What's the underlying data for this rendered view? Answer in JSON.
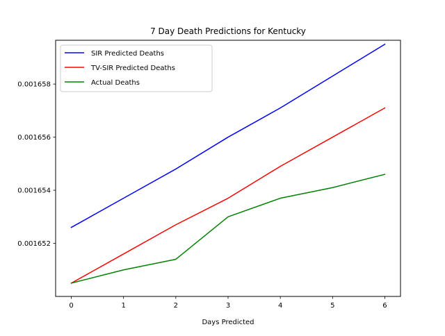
{
  "chart_data": {
    "type": "line",
    "title": "7 Day Death Predictions for Kentucky",
    "xlabel": "Days Predicted",
    "ylabel": "",
    "x": [
      0,
      1,
      2,
      3,
      4,
      5,
      6
    ],
    "xlim": [
      -0.3,
      6.3
    ],
    "ylim": [
      0.00165,
      0.00165965
    ],
    "x_ticks": [
      "0",
      "1",
      "2",
      "3",
      "4",
      "5",
      "6"
    ],
    "y_ticks": [
      {
        "value": 0.001652,
        "label": "0.001652"
      },
      {
        "value": 0.001654,
        "label": "0.001654"
      },
      {
        "value": 0.001656,
        "label": "0.001656"
      },
      {
        "value": 0.001658,
        "label": "0.001658"
      }
    ],
    "grid": false,
    "legend_position": "top-left",
    "series": [
      {
        "name": "SIR Predicted Deaths",
        "color": "#0000ff",
        "values": [
          0.0016526,
          0.0016537,
          0.0016548,
          0.001656,
          0.0016571,
          0.0016583,
          0.0016595
        ]
      },
      {
        "name": "TV-SIR Predicted Deaths",
        "color": "#ff0000",
        "values": [
          0.0016505,
          0.0016516,
          0.0016527,
          0.0016537,
          0.0016549,
          0.001656,
          0.0016571
        ]
      },
      {
        "name": "Actual Deaths",
        "color": "#008000",
        "values": [
          0.0016505,
          0.001651,
          0.0016514,
          0.001653,
          0.0016537,
          0.0016541,
          0.0016546
        ]
      }
    ]
  }
}
